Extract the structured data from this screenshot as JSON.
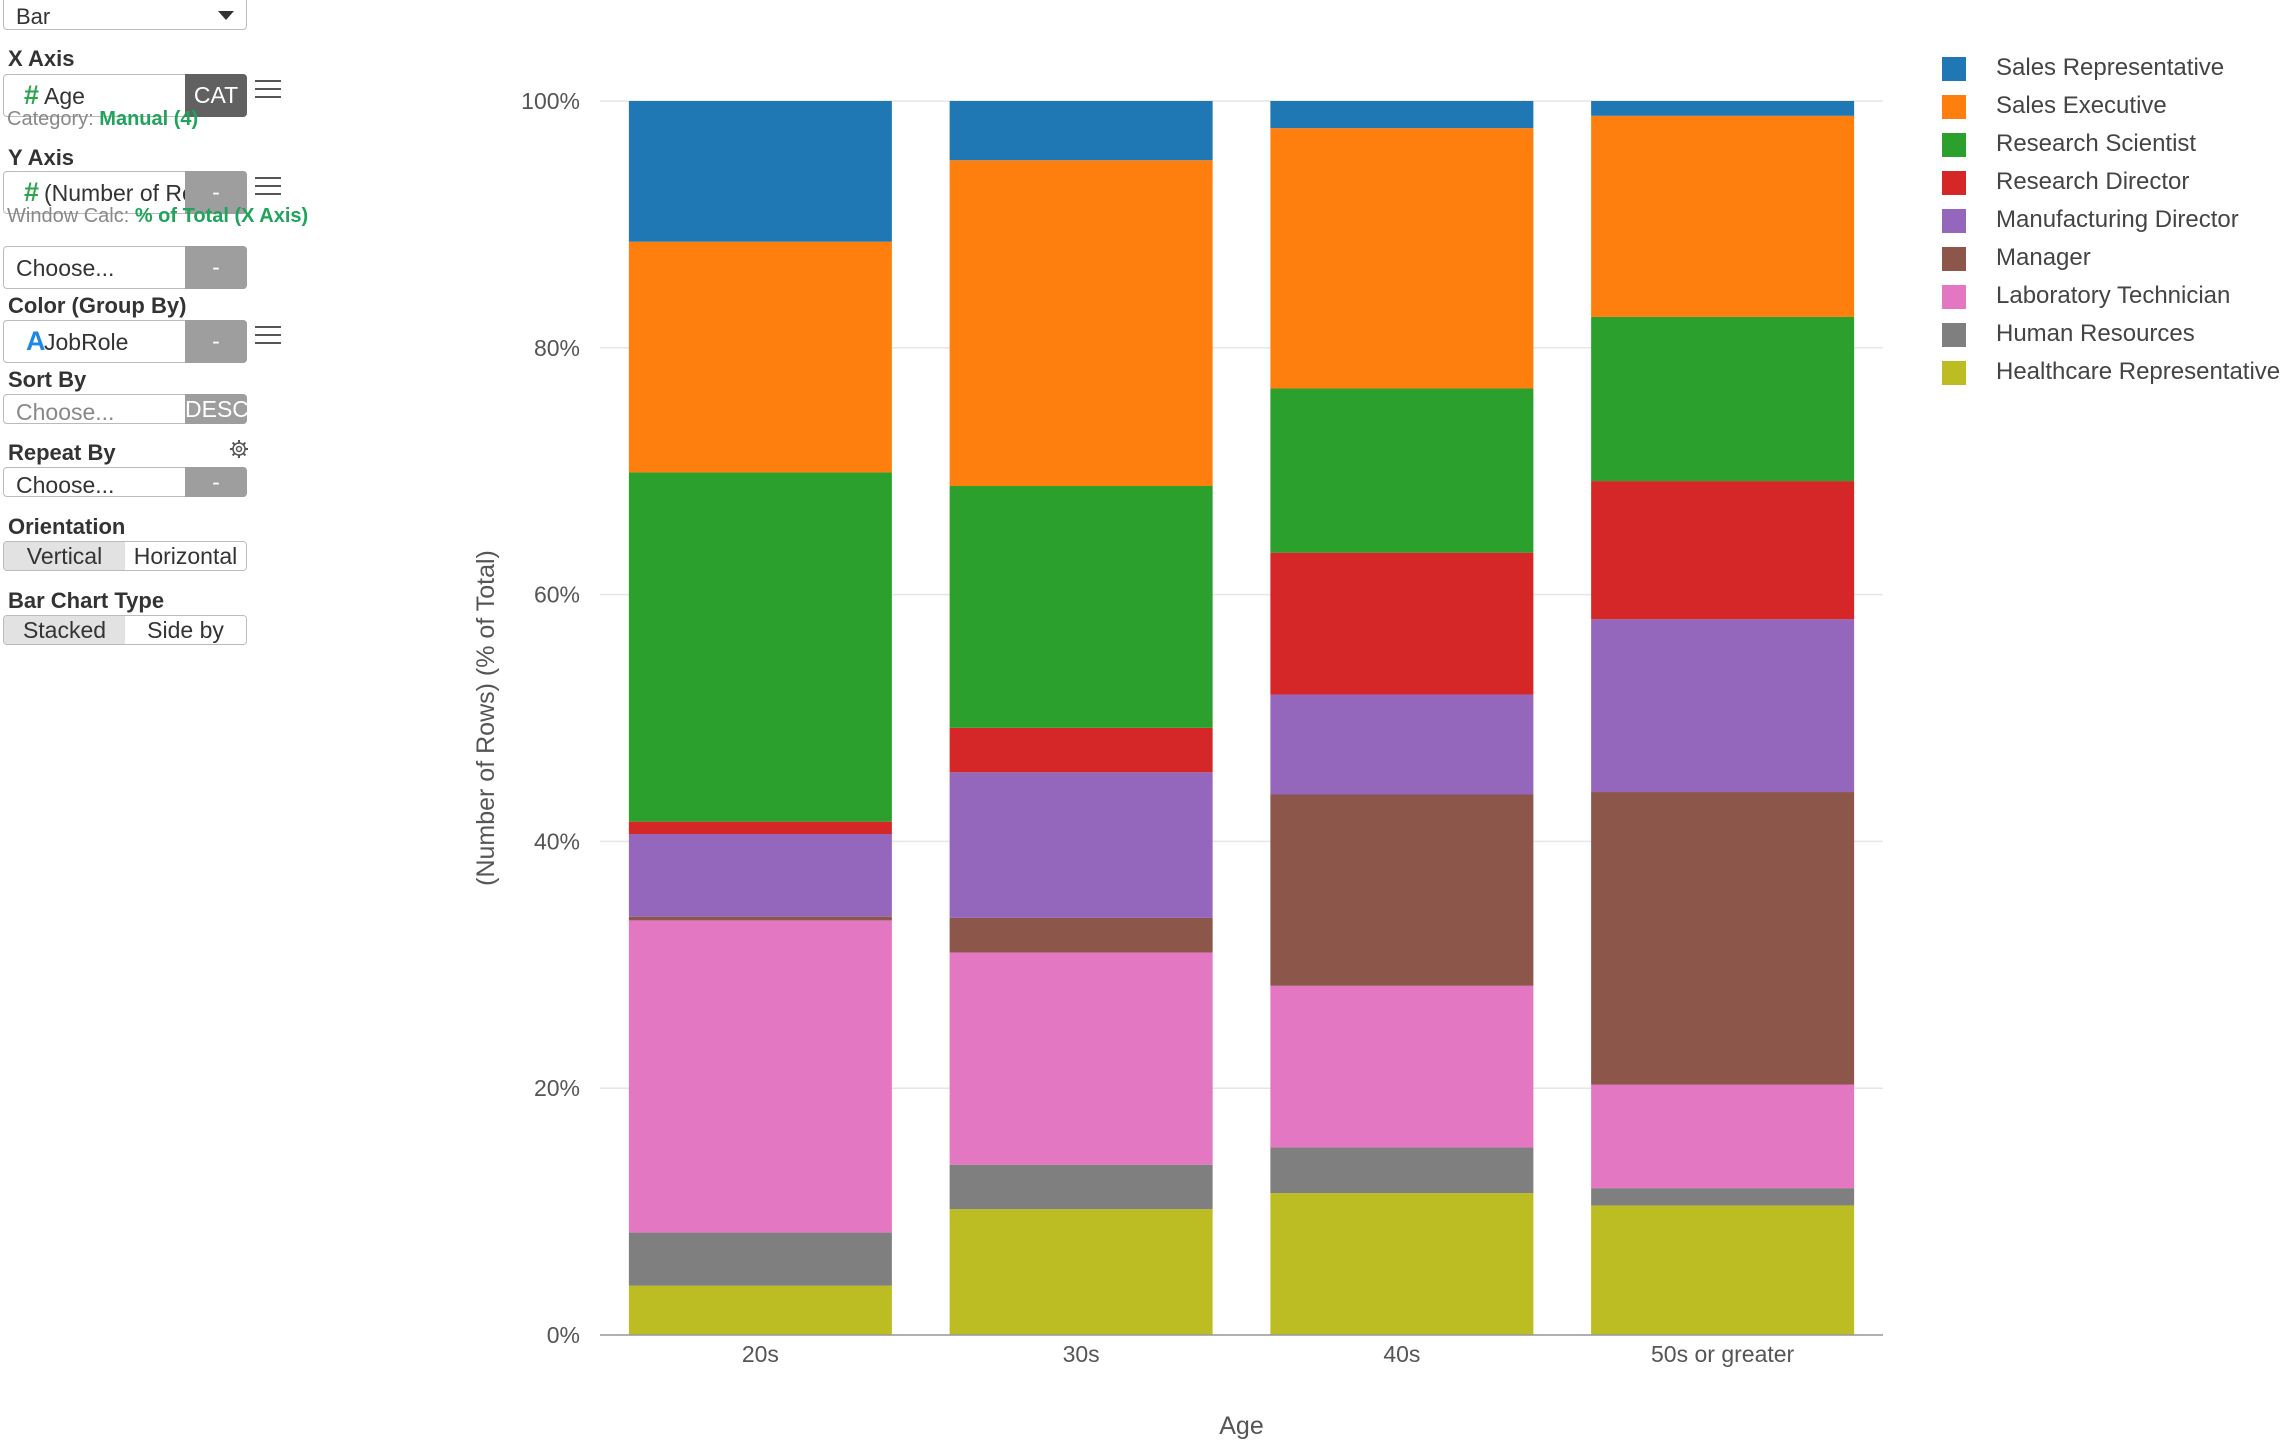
{
  "panel": {
    "chart_type": "Bar",
    "x_axis": {
      "label": "X Axis",
      "field": "Age",
      "badge": "CAT",
      "sub_prefix": "Category:",
      "sub_value": "Manual (4)"
    },
    "y_axis": {
      "label": "Y Axis",
      "field": "(Number of Rows)",
      "badge": "-",
      "sub_prefix": "Window Calc:",
      "sub_value": "% of Total (X Axis)"
    },
    "y_axis2": {
      "placeholder": "Choose...",
      "badge": "-"
    },
    "color": {
      "label": "Color (Group By)",
      "field": "JobRole",
      "badge": "-"
    },
    "sort": {
      "label": "Sort By",
      "placeholder": "Choose...",
      "badge": "DESC"
    },
    "repeat": {
      "label": "Repeat By",
      "placeholder": "Choose...",
      "badge": "-"
    },
    "orientation": {
      "label": "Orientation",
      "options": [
        "Vertical",
        "Horizontal"
      ],
      "selected": "Vertical"
    },
    "bar_type": {
      "label": "Bar Chart Type",
      "options": [
        "Stacked",
        "Side by Side"
      ],
      "selected": "Stacked"
    }
  },
  "chart_data": {
    "type": "bar",
    "stacked": true,
    "categories": [
      "20s",
      "30s",
      "40s",
      "50s or greater"
    ],
    "xlabel": "Age",
    "ylabel": "(Number of Rows) (% of Total)",
    "ylim": [
      0,
      100
    ],
    "yticks": [
      "0%",
      "20%",
      "40%",
      "60%",
      "80%",
      "100%"
    ],
    "grid": true,
    "legend_position": "right",
    "series": [
      {
        "name": "Healthcare Representative",
        "color": "#bcbd22",
        "values": [
          4.0,
          10.2,
          11.5,
          10.5
        ]
      },
      {
        "name": "Human Resources",
        "color": "#7f7f7f",
        "values": [
          4.3,
          3.6,
          3.7,
          1.4
        ]
      },
      {
        "name": "Laboratory Technician",
        "color": "#e377c2",
        "values": [
          25.3,
          17.2,
          13.1,
          8.4
        ]
      },
      {
        "name": "Manager",
        "color": "#8c564b",
        "values": [
          0.3,
          2.8,
          15.5,
          23.7
        ]
      },
      {
        "name": "Manufacturing Director",
        "color": "#9467bd",
        "values": [
          6.7,
          11.8,
          8.1,
          14.0
        ]
      },
      {
        "name": "Research Director",
        "color": "#d62728",
        "values": [
          1.0,
          3.6,
          11.5,
          11.2
        ]
      },
      {
        "name": "Research Scientist",
        "color": "#2ca02c",
        "values": [
          28.3,
          19.6,
          13.3,
          13.3
        ]
      },
      {
        "name": "Sales Executive",
        "color": "#ff7f0e",
        "values": [
          18.7,
          26.4,
          21.1,
          16.3
        ]
      },
      {
        "name": "Sales Representative",
        "color": "#1f77b4",
        "values": [
          11.4,
          4.8,
          2.2,
          1.2
        ]
      }
    ]
  }
}
